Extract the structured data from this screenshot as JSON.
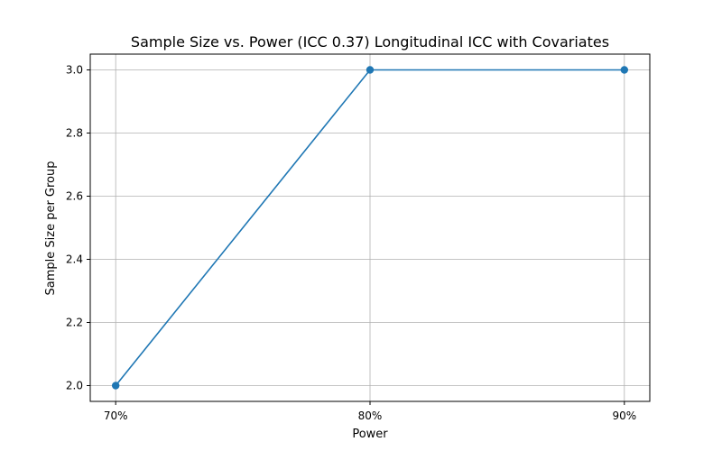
{
  "chart_data": {
    "type": "line",
    "title": "Sample Size vs. Power (ICC 0.37) Longitudinal ICC with Covariates",
    "xlabel": "Power",
    "ylabel": "Sample Size per Group",
    "categories": [
      "70%",
      "80%",
      "90%"
    ],
    "series": [
      {
        "values": [
          2,
          3,
          3
        ],
        "color": "#1f77b4",
        "marker": "circle"
      }
    ],
    "ylim": [
      1.95,
      3.05
    ],
    "yticks": [
      2.0,
      2.2,
      2.4,
      2.6,
      2.8,
      3.0
    ],
    "ytick_labels": [
      "2.0",
      "2.2",
      "2.4",
      "2.6",
      "2.8",
      "3.0"
    ],
    "grid": true
  }
}
